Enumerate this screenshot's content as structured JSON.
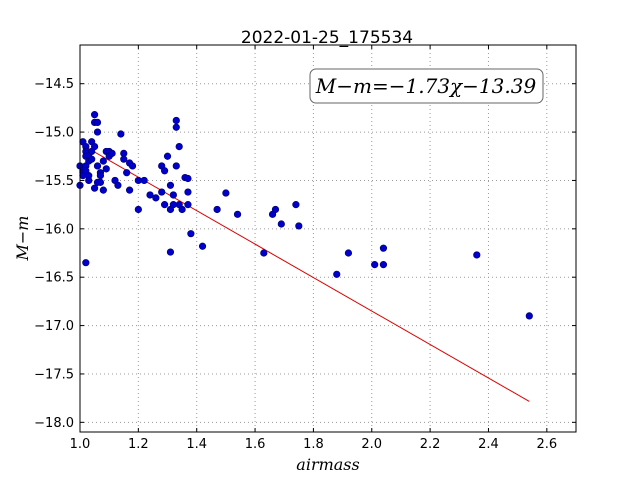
{
  "chart_data": {
    "type": "scatter",
    "title": "2022-01-25_175534",
    "xlabel": "airmass",
    "ylabel": "M−m",
    "annotation": "M−m=−1.73χ−13.39",
    "xlim": [
      1.0,
      2.7
    ],
    "ylim": [
      -18.1,
      -14.1
    ],
    "xticks": [
      1.0,
      1.2,
      1.4,
      1.6,
      1.8,
      2.0,
      2.2,
      2.4,
      2.6
    ],
    "xtick_labels": [
      "1.0",
      "1.2",
      "1.4",
      "1.6",
      "1.8",
      "2.0",
      "2.2",
      "2.4",
      "2.6"
    ],
    "yticks": [
      -14.5,
      -15.0,
      -15.5,
      -16.0,
      -16.5,
      -17.0,
      -17.5,
      -18.0
    ],
    "ytick_labels": [
      "−14.5",
      "−15.0",
      "−15.5",
      "−16.0",
      "−16.5",
      "−17.0",
      "−17.5",
      "−18.0"
    ],
    "grid": true,
    "colors": {
      "points": "#0000cc",
      "fit_line": "#dd0000",
      "axes": "#000000",
      "grid": "#9a9a9a"
    },
    "fit": {
      "slope": -1.73,
      "intercept": -13.39,
      "x_range": [
        1.0,
        2.54
      ]
    },
    "points": {
      "x": [
        1.0,
        1.0,
        1.01,
        1.01,
        1.01,
        1.01,
        1.02,
        1.02,
        1.02,
        1.02,
        1.02,
        1.03,
        1.03,
        1.03,
        1.03,
        1.04,
        1.04,
        1.04,
        1.05,
        1.05,
        1.05,
        1.05,
        1.06,
        1.06,
        1.06,
        1.06,
        1.07,
        1.07,
        1.07,
        1.08,
        1.08,
        1.09,
        1.09,
        1.1,
        1.1,
        1.11,
        1.12,
        1.13,
        1.14,
        1.15,
        1.15,
        1.16,
        1.17,
        1.17,
        1.18,
        1.2,
        1.2,
        1.22,
        1.24,
        1.26,
        1.28,
        1.28,
        1.29,
        1.29,
        1.3,
        1.31,
        1.31,
        1.32,
        1.32,
        1.33,
        1.33,
        1.33,
        1.34,
        1.34,
        1.35,
        1.36,
        1.37,
        1.37,
        1.37,
        1.38,
        1.42,
        1.47,
        1.5,
        1.54,
        1.63,
        1.66,
        1.67,
        1.69,
        1.74,
        1.75,
        1.88,
        1.92,
        2.01,
        2.04,
        2.04,
        2.36,
        2.54,
        1.02,
        1.31
      ],
      "y": [
        -15.35,
        -15.55,
        -15.1,
        -15.4,
        -15.42,
        -15.45,
        -15.15,
        -15.2,
        -15.25,
        -15.35,
        -15.4,
        -15.25,
        -15.3,
        -15.45,
        -15.5,
        -15.1,
        -15.2,
        -15.28,
        -14.82,
        -14.9,
        -15.15,
        -15.58,
        -14.9,
        -15.0,
        -15.35,
        -15.52,
        -15.42,
        -15.52,
        -15.45,
        -15.3,
        -15.6,
        -15.2,
        -15.38,
        -15.2,
        -15.25,
        -15.22,
        -15.5,
        -15.55,
        -15.02,
        -15.22,
        -15.28,
        -15.42,
        -15.32,
        -15.6,
        -15.35,
        -15.5,
        -15.8,
        -15.5,
        -15.65,
        -15.68,
        -15.35,
        -15.62,
        -15.4,
        -15.75,
        -15.25,
        -15.55,
        -15.8,
        -15.65,
        -15.75,
        -14.88,
        -14.95,
        -15.35,
        -15.15,
        -15.75,
        -15.8,
        -15.47,
        -15.48,
        -15.75,
        -15.62,
        -16.05,
        -16.18,
        -15.8,
        -15.63,
        -15.85,
        -16.25,
        -15.85,
        -15.8,
        -15.95,
        -15.75,
        -15.97,
        -16.47,
        -16.25,
        -16.37,
        -16.2,
        -16.37,
        -16.27,
        -16.9,
        -16.35,
        -16.24
      ]
    }
  }
}
